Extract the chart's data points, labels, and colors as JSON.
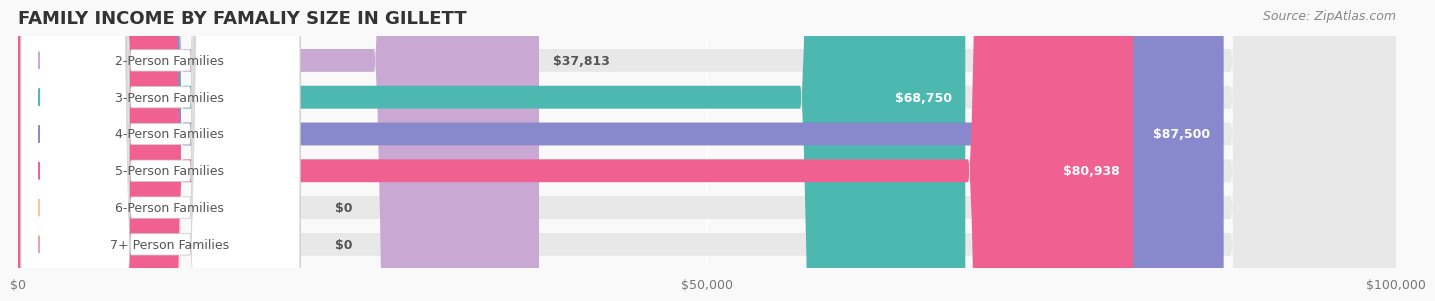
{
  "title": "FAMILY INCOME BY FAMALIY SIZE IN GILLETT",
  "source": "Source: ZipAtlas.com",
  "categories": [
    "2-Person Families",
    "3-Person Families",
    "4-Person Families",
    "5-Person Families",
    "6-Person Families",
    "7+ Person Families"
  ],
  "values": [
    37813,
    68750,
    87500,
    80938,
    0,
    0
  ],
  "bar_colors": [
    "#c9a8d4",
    "#4db8b0",
    "#8888cc",
    "#f06090",
    "#f5c89a",
    "#f0a0a8"
  ],
  "bar_bg_color": "#eeeeee",
  "label_bg_color": "#ffffff",
  "label_text_color": "#555555",
  "value_text_color_inside": "#ffffff",
  "value_text_color_outside": "#555555",
  "xlim": [
    0,
    100000
  ],
  "xticks": [
    0,
    50000,
    100000
  ],
  "xtick_labels": [
    "$0",
    "$50,000",
    "$100,000"
  ],
  "background_color": "#f9f9f9",
  "title_fontsize": 13,
  "source_fontsize": 9,
  "label_fontsize": 9,
  "value_fontsize": 9
}
